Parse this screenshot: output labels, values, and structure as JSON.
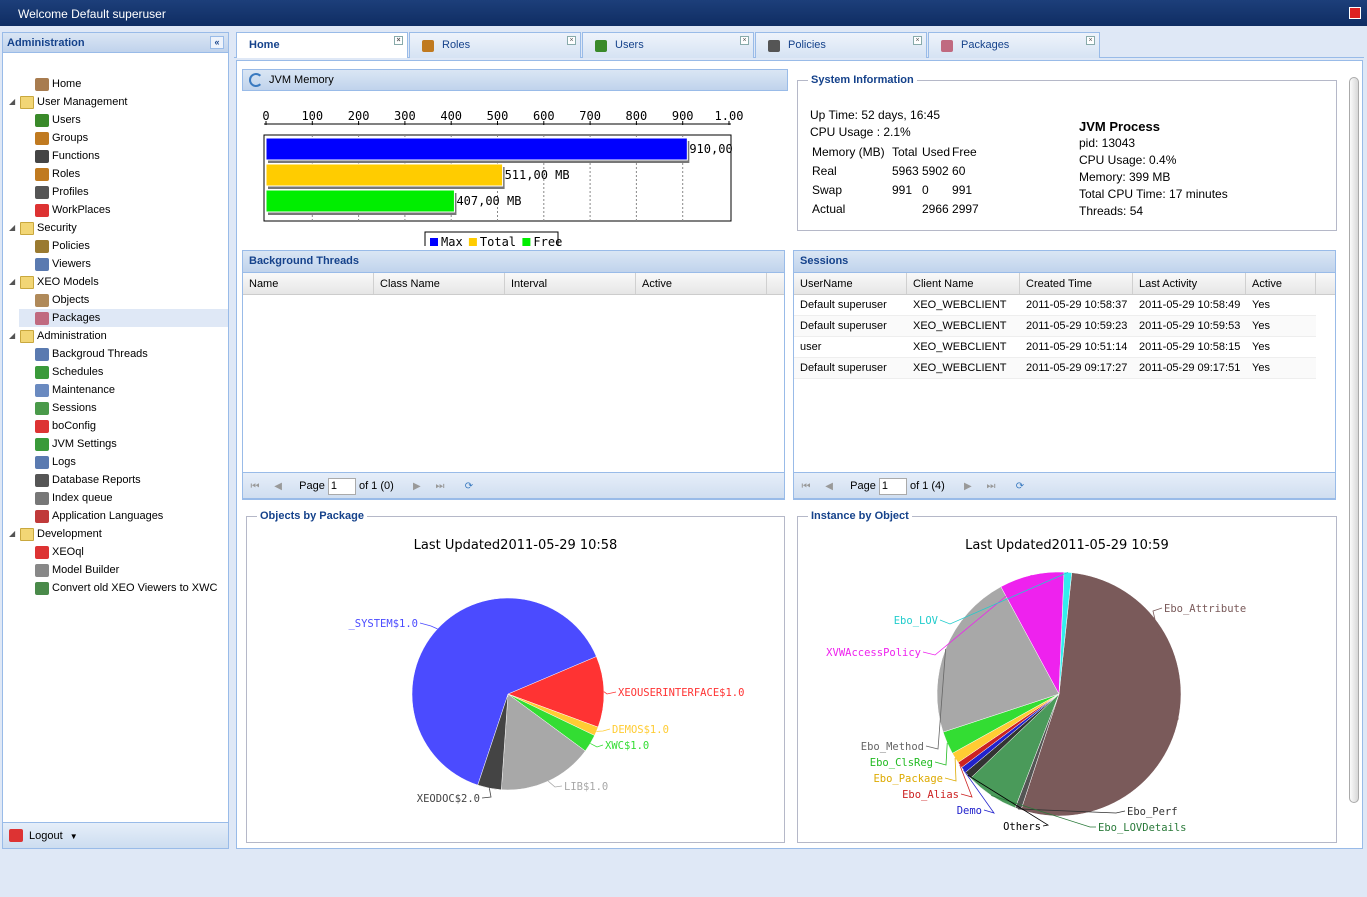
{
  "window": {
    "title": "Welcome Default superuser"
  },
  "sidebar": {
    "title": "Administration",
    "items": [
      {
        "label": "Home",
        "level": 1,
        "icon": "home-icon",
        "color": "#a87c4f"
      },
      {
        "label": "User Management",
        "level": 0,
        "folder": true
      },
      {
        "label": "Users",
        "level": 1,
        "icon": "user-icon",
        "color": "#3a8a2a"
      },
      {
        "label": "Groups",
        "level": 1,
        "icon": "group-icon",
        "color": "#c07a20"
      },
      {
        "label": "Functions",
        "level": 1,
        "icon": "fx-icon",
        "color": "#444"
      },
      {
        "label": "Roles",
        "level": 1,
        "icon": "roles-icon",
        "color": "#c07a20"
      },
      {
        "label": "Profiles",
        "level": 1,
        "icon": "profile-icon",
        "color": "#555"
      },
      {
        "label": "WorkPlaces",
        "level": 1,
        "icon": "workplace-icon",
        "color": "#d33"
      },
      {
        "label": "Security",
        "level": 0,
        "folder": true
      },
      {
        "label": "Policies",
        "level": 1,
        "icon": "lock-icon",
        "color": "#9a7a30"
      },
      {
        "label": "Viewers",
        "level": 1,
        "icon": "viewer-icon",
        "color": "#5a7ab0"
      },
      {
        "label": "XEO Models",
        "level": 0,
        "folder": true
      },
      {
        "label": "Objects",
        "level": 1,
        "icon": "objects-icon",
        "color": "#b08a5a"
      },
      {
        "label": "Packages",
        "level": 1,
        "icon": "package-icon",
        "color": "#c06a80",
        "selected": true
      },
      {
        "label": "Administration",
        "level": 0,
        "folder": true
      },
      {
        "label": "Backgroud Threads",
        "level": 1,
        "icon": "threads-icon",
        "color": "#5a7ab0"
      },
      {
        "label": "Schedules",
        "level": 1,
        "icon": "schedule-icon",
        "color": "#3a9a3a"
      },
      {
        "label": "Maintenance",
        "level": 1,
        "icon": "maintenance-icon",
        "color": "#6a8ac0"
      },
      {
        "label": "Sessions",
        "level": 1,
        "icon": "sessions-icon",
        "color": "#4a9a4a"
      },
      {
        "label": "boConfig",
        "level": 1,
        "icon": "config-icon",
        "color": "#d33"
      },
      {
        "label": "JVM Settings",
        "level": 1,
        "icon": "jvm-icon",
        "color": "#3a9a3a"
      },
      {
        "label": "Logs",
        "level": 1,
        "icon": "logs-icon",
        "color": "#5a7ab0"
      },
      {
        "label": "Database Reports",
        "level": 1,
        "icon": "report-icon",
        "color": "#555"
      },
      {
        "label": "Index queue",
        "level": 1,
        "icon": "queue-icon",
        "color": "#777"
      },
      {
        "label": "Application Languages",
        "level": 1,
        "icon": "language-icon",
        "color": "#c03a3a"
      },
      {
        "label": "Development",
        "level": 0,
        "folder": true
      },
      {
        "label": "XEOql",
        "level": 1,
        "icon": "xeoql-icon",
        "color": "#d33"
      },
      {
        "label": "Model Builder",
        "level": 1,
        "icon": "builder-icon",
        "color": "#888"
      },
      {
        "label": "Convert old XEO Viewers to XWC",
        "level": 1,
        "icon": "convert-icon",
        "color": "#4a8a4a"
      }
    ],
    "logout": "Logout"
  },
  "tabs": [
    {
      "label": "Home",
      "active": true,
      "color": ""
    },
    {
      "label": "Roles",
      "color": "#c07a20"
    },
    {
      "label": "Users",
      "color": "#3a8a2a"
    },
    {
      "label": "Policies",
      "color": "#555"
    },
    {
      "label": "Packages",
      "color": "#c06a80"
    }
  ],
  "jvm_memory": {
    "title": "JVM Memory",
    "chart_data": {
      "type": "bar",
      "orientation": "horizontal",
      "categories": [
        "Max",
        "Total",
        "Free"
      ],
      "values": [
        910,
        511,
        407
      ],
      "labels": [
        "910,00",
        "511,00 MB",
        "407,00 MB"
      ],
      "ticks": [
        "0",
        "100",
        "200",
        "300",
        "400",
        "500",
        "600",
        "700",
        "800",
        "900",
        "1.00"
      ],
      "xlim": [
        0,
        1000
      ],
      "colors": [
        "#0000ff",
        "#ffcc00",
        "#00ee00"
      ],
      "legend": [
        "Max",
        "Total",
        "Free"
      ],
      "legend_position": "bottom"
    }
  },
  "system_info": {
    "title": "System Information",
    "uptime": "Up Time: 52 days, 16:45",
    "cpu": "CPU Usage : 2.1%",
    "mem_header": [
      "Memory (MB)",
      "Total",
      "Used",
      "Free"
    ],
    "mem_rows": [
      [
        "Real",
        "5963",
        "5902",
        "60"
      ],
      [
        "Swap",
        "991",
        "0",
        "991"
      ],
      [
        "Actual",
        "",
        "2966",
        "2997"
      ]
    ],
    "process_title": "JVM Process",
    "process": [
      "pid: 13043",
      "CPU Usage: 0.4%",
      "Memory: 399 MB",
      "Total CPU Time: 17 minutes",
      "Threads: 54"
    ]
  },
  "background_threads": {
    "title": "Background Threads",
    "columns": [
      "Name",
      "Class Name",
      "Interval",
      "Active"
    ],
    "pager": {
      "page_label": "Page",
      "page": "1",
      "of": "of 1 (0)"
    }
  },
  "sessions": {
    "title": "Sessions",
    "columns": [
      "UserName",
      "Client Name",
      "Created Time",
      "Last Activity",
      "Active"
    ],
    "rows": [
      [
        "Default superuser",
        "XEO_WEBCLIENT",
        "2011-05-29 10:58:37",
        "2011-05-29 10:58:49",
        "Yes"
      ],
      [
        "Default superuser",
        "XEO_WEBCLIENT",
        "2011-05-29 10:59:23",
        "2011-05-29 10:59:53",
        "Yes"
      ],
      [
        "user",
        "XEO_WEBCLIENT",
        "2011-05-29 10:51:14",
        "2011-05-29 10:58:15",
        "Yes"
      ],
      [
        "Default superuser",
        "XEO_WEBCLIENT",
        "2011-05-29 09:17:27",
        "2011-05-29 09:17:51",
        "Yes"
      ]
    ],
    "pager": {
      "page_label": "Page",
      "page": "1",
      "of": "of 1 (4)"
    }
  },
  "objects_by_package": {
    "title": "Objects by Package",
    "chart_data": {
      "type": "pie",
      "title": "Last Updated2011-05-29 10:58",
      "slices": [
        {
          "label": "XEOUSERINTERFACE$1.0",
          "value": 12,
          "color": "#ff3333"
        },
        {
          "label": "DEMOS$1.0",
          "value": 1.5,
          "color": "#ffcc33"
        },
        {
          "label": "XWC$1.0",
          "value": 3,
          "color": "#33dd33"
        },
        {
          "label": "LIB$1.0",
          "value": 16,
          "color": "#a8a8a8"
        },
        {
          "label": "XEODOC$2.0",
          "value": 4,
          "color": "#444444"
        },
        {
          "label": "_SYSTEM$1.0",
          "value": 63.5,
          "color": "#4b4bff"
        }
      ]
    }
  },
  "instance_by_object": {
    "title": "Instance by Object",
    "chart_data": {
      "type": "pie",
      "title": "Last Updated2011-05-29 10:59",
      "slices": [
        {
          "label": "Ebo_Attribute",
          "value": 53,
          "color": "#7a5a5a"
        },
        {
          "label": "Ebo_Perf",
          "value": 0.8,
          "color": "#555555"
        },
        {
          "label": "Ebo_LOVDetails",
          "value": 7,
          "color": "#4a9a5a"
        },
        {
          "label": "Others",
          "value": 1,
          "color": "#333333"
        },
        {
          "label": "Demo",
          "value": 0.8,
          "color": "#2222cc"
        },
        {
          "label": "Ebo_Alias",
          "value": 0.8,
          "color": "#cc2222"
        },
        {
          "label": "Ebo_Package",
          "value": 1.4,
          "color": "#ffcc33"
        },
        {
          "label": "Ebo_ClsReg",
          "value": 3,
          "color": "#33dd33"
        },
        {
          "label": "Ebo_Method",
          "value": 22,
          "color": "#a8a8a8"
        },
        {
          "label": "XVWAccessPolicy",
          "value": 8.5,
          "color": "#ee22ee"
        },
        {
          "label": "Ebo_LOV",
          "value": 1,
          "color": "#33eeee"
        }
      ],
      "label_colors": {
        "Ebo_Attribute": "#7a5a5a",
        "Ebo_Perf": "#333333",
        "Ebo_LOVDetails": "#2a7a3a",
        "Others": "#000000",
        "Demo": "#2222cc",
        "Ebo_Alias": "#cc2222",
        "Ebo_Package": "#ddaa00",
        "Ebo_ClsReg": "#22bb22",
        "Ebo_Method": "#666666",
        "XVWAccessPolicy": "#ee22ee",
        "Ebo_LOV": "#22cccc"
      }
    }
  }
}
